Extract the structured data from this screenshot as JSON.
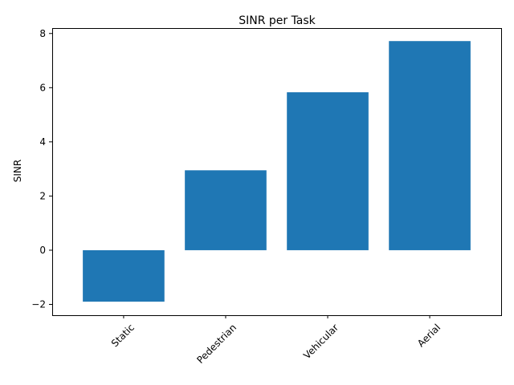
{
  "chart_data": {
    "type": "bar",
    "title": "SINR per Task",
    "xlabel": "",
    "ylabel": "SINR",
    "categories": [
      "Static",
      "Pedestrian",
      "Vehicular",
      "Aerial"
    ],
    "values": [
      -1.9,
      2.95,
      5.83,
      7.72
    ],
    "ylim": [
      -2.4,
      8.2
    ],
    "yticks": [
      -2,
      0,
      2,
      4,
      6,
      8
    ],
    "ytick_labels": [
      "−2",
      "0",
      "2",
      "4",
      "6",
      "8"
    ],
    "x_tick_rotation": 45,
    "grid": false,
    "legend": "none",
    "bar_color": "#1f77b4"
  }
}
